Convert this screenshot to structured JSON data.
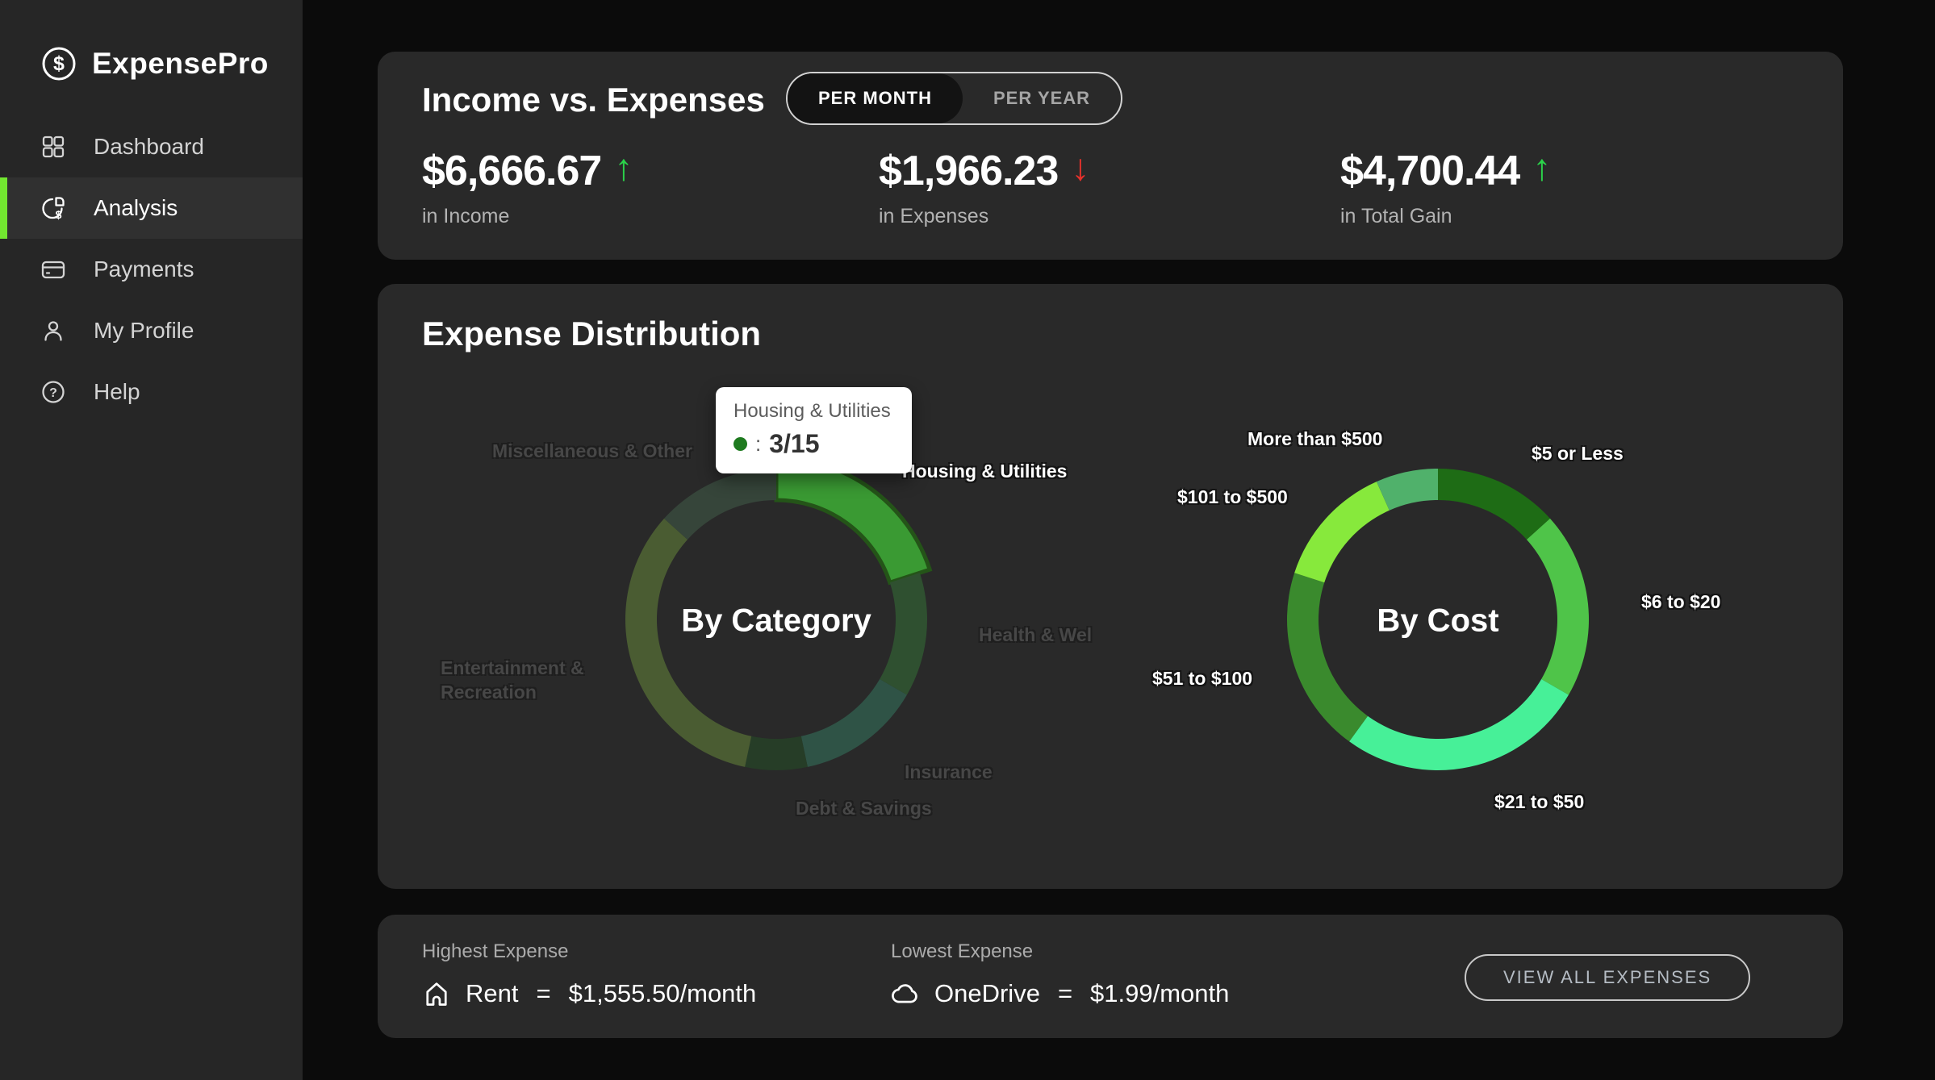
{
  "sidebar": {
    "brand": "ExpensePro",
    "items": [
      {
        "label": "Dashboard",
        "icon": "dashboard-grid-icon",
        "active": false
      },
      {
        "label": "Analysis",
        "icon": "pie-dollar-icon",
        "active": true
      },
      {
        "label": "Payments",
        "icon": "credit-card-icon",
        "active": false
      },
      {
        "label": "My Profile",
        "icon": "person-icon",
        "active": false
      },
      {
        "label": "Help",
        "icon": "question-circle-icon",
        "active": false
      }
    ]
  },
  "income_card": {
    "title": "Income vs. Expenses",
    "toggle": {
      "options": [
        "PER MONTH",
        "PER YEAR"
      ],
      "selected": "PER MONTH"
    },
    "up_arrow": "↑",
    "down_arrow": "↓",
    "stats": [
      {
        "value": "$6,666.67",
        "direction": "up",
        "label": "in Income"
      },
      {
        "value": "$1,966.23",
        "direction": "down",
        "label": "in Expenses"
      },
      {
        "value": "$4,700.44",
        "direction": "up",
        "label": "in Total Gain"
      }
    ]
  },
  "distribution_card": {
    "title": "Expense Distribution"
  },
  "summary_card": {
    "highest": {
      "label": "Highest Expense",
      "name": "Rent",
      "equals": "=",
      "value": "$1,555.50/month",
      "icon": "house-icon"
    },
    "lowest": {
      "label": "Lowest Expense",
      "name": "OneDrive",
      "equals": "=",
      "value": "$1.99/month",
      "icon": "cloud-icon"
    },
    "view_all_label": "VIEW ALL EXPENSES"
  },
  "colors": {
    "page_background": "#0B0B0B",
    "sidebar_background": "#262626",
    "card_background": "#292929",
    "accent": "#72E630",
    "positive": "#2BD24A",
    "negative": "#E5312B",
    "tooltip_dot": "#1E7A1F"
  },
  "chart_data": [
    {
      "type": "pie",
      "donut": true,
      "title": "By Category",
      "total_items": 15,
      "start_angle_deg": 0,
      "direction": "clockwise",
      "segments": [
        {
          "label": "Housing & Utilities",
          "value": 3,
          "color": "#3A9A33"
        },
        {
          "label": "Health & Wel",
          "value": 2,
          "color": "#2F5030"
        },
        {
          "label": "Insurance",
          "value": 2,
          "color": "#2F5346"
        },
        {
          "label": "Debt & Savings",
          "value": 1,
          "color": "#263D27"
        },
        {
          "label": "Entertainment & Recreation",
          "value": 5,
          "color": "#4A5C32"
        },
        {
          "label": "Miscellaneous & Other",
          "value": 2,
          "color": "#36453A"
        }
      ],
      "highlighted_segment": "Housing & Utilities",
      "highlight_border": "#245418",
      "tooltip": {
        "title": "Housing & Utilities",
        "separator": ": ",
        "value": "3/15"
      },
      "legend_position": "labels-around-ring"
    },
    {
      "type": "pie",
      "donut": true,
      "title": "By Cost",
      "total_items": 15,
      "start_angle_deg": 0,
      "direction": "clockwise",
      "segments": [
        {
          "label": "$5 or Less",
          "value": 2,
          "color": "#1E6C15"
        },
        {
          "label": "$6 to $20",
          "value": 3,
          "color": "#4FC449"
        },
        {
          "label": "$21 to $50",
          "value": 4,
          "color": "#47F098"
        },
        {
          "label": "$51 to $100",
          "value": 3,
          "color": "#3A8A2D"
        },
        {
          "label": "$101 to $500",
          "value": 2,
          "color": "#87E93C"
        },
        {
          "label": "More than $500",
          "value": 1,
          "color": "#50B16B"
        }
      ],
      "legend_position": "labels-around-ring"
    }
  ]
}
